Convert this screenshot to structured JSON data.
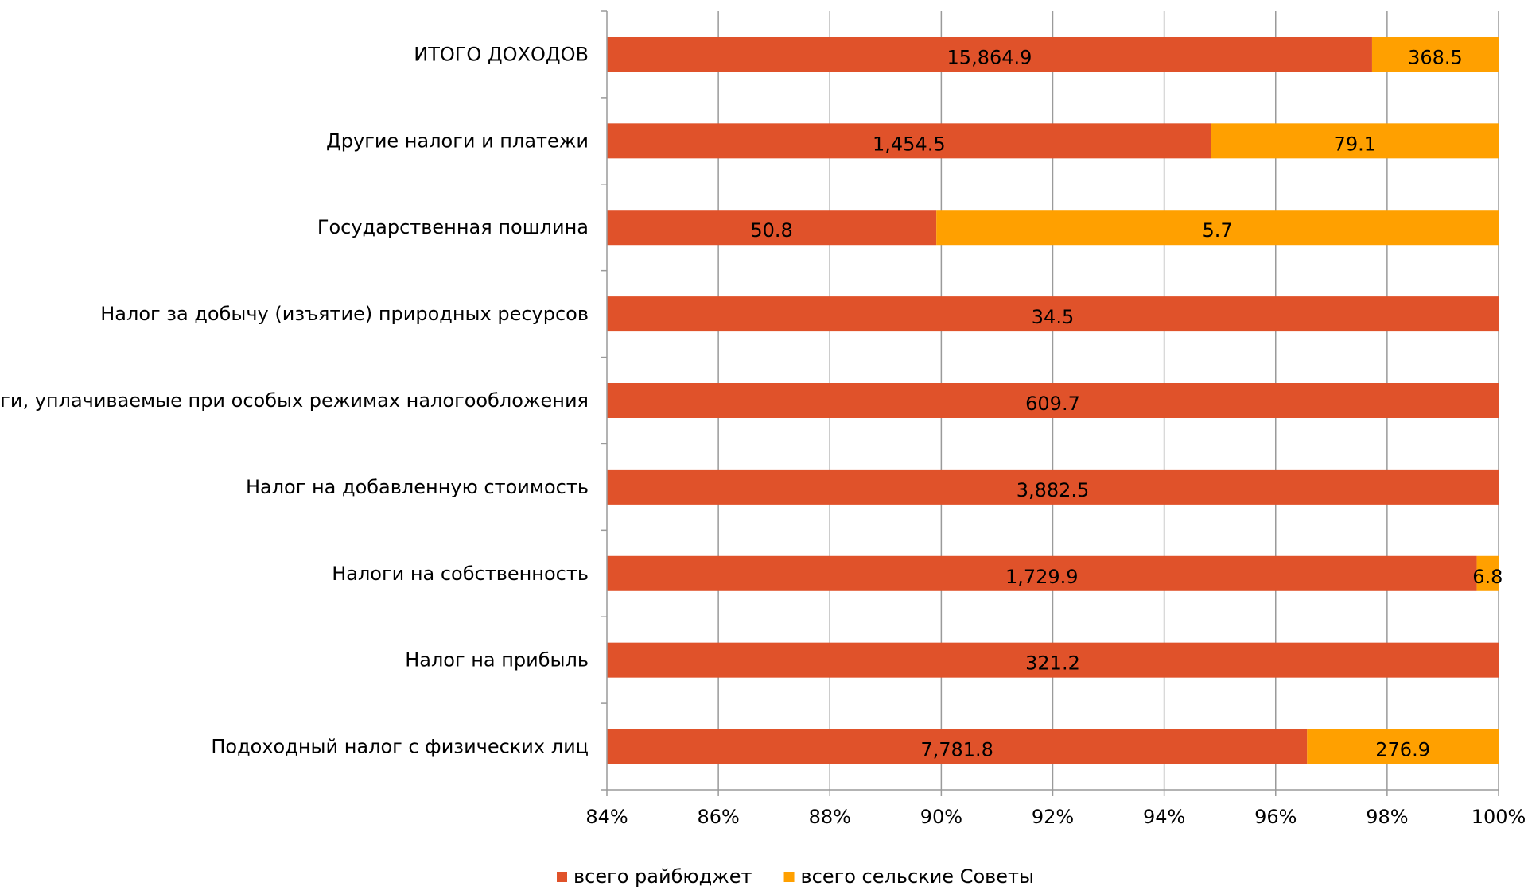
{
  "chart_data": {
    "type": "bar",
    "orientation": "horizontal",
    "stacked": "percent",
    "categories": [
      "Подоходный налог с физических лиц",
      "Налог на прибыль",
      "Налоги на собственность",
      "Налог на добавленную стоимость",
      "Налоги, уплачиваемые при особых режимах налогообложения",
      "Налог за добычу (изъятие) природных ресурсов",
      "Государственная пошлина",
      "Другие налоги и платежи",
      "ИТОГО  ДОХОДОВ"
    ],
    "series": [
      {
        "name": "всего райбюджет",
        "color": "#E0522A",
        "values": [
          7781.8,
          321.2,
          1729.9,
          3882.5,
          609.7,
          34.5,
          50.8,
          1454.5,
          15864.9
        ],
        "labels": [
          "7,781.8",
          "321.2",
          "1,729.9",
          "3,882.5",
          "609.7",
          "34.5",
          "50.8",
          "1,454.5",
          "15,864.9"
        ]
      },
      {
        "name": "всего сельские Советы",
        "color": "#FFA000",
        "values": [
          276.9,
          null,
          6.8,
          null,
          null,
          null,
          5.7,
          79.1,
          368.5
        ],
        "labels": [
          "276.9",
          null,
          "6.8",
          null,
          null,
          null,
          "5.7",
          "79.1",
          "368.5"
        ]
      }
    ],
    "xlim": [
      84,
      100
    ],
    "xticks": [
      "84%",
      "86%",
      "88%",
      "90%",
      "92%",
      "94%",
      "96%",
      "98%",
      "100%"
    ],
    "grid": true,
    "legend_position": "bottom",
    "title": "",
    "xlabel": "",
    "ylabel": ""
  }
}
